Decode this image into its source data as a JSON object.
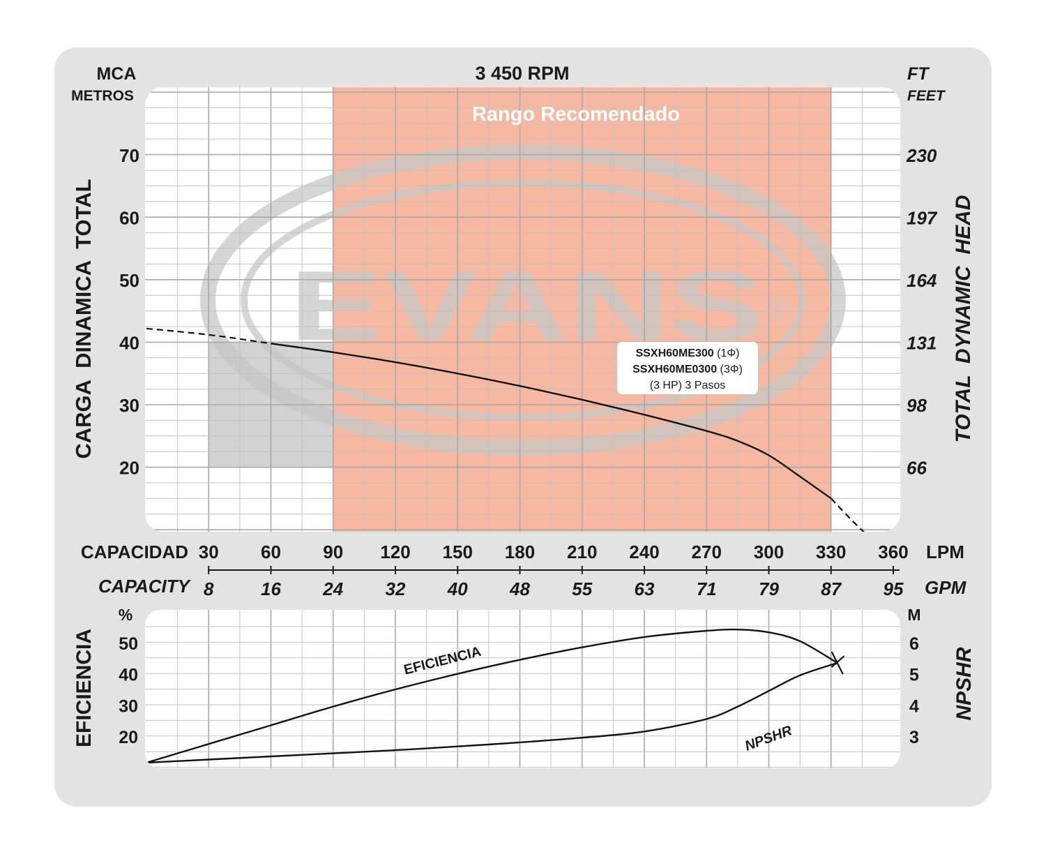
{
  "colors": {
    "frame": "#e3e3e3",
    "panel": "#ffffff",
    "grid": "#c2c2c2",
    "recommended_fill": "#f6b8a1",
    "gray_zone_fill": "#d2d2d2",
    "curve": "#111111",
    "watermark": "#c7c7c7",
    "text": "#1a1a1a"
  },
  "header": {
    "left_unit_main": "MCA",
    "left_unit_sub": "METROS",
    "speed": "3 450 RPM",
    "right_unit_main": "FT",
    "right_unit_sub": "FEET"
  },
  "watermark": {
    "brand": "EVANS",
    "mark": "®"
  },
  "recommended_range": {
    "label": "Rango Recomendado",
    "lpm_from": 90,
    "lpm_to": 330
  },
  "gray_zone": {
    "lpm_from": 30,
    "lpm_to": 90,
    "head_from": 20,
    "head_to": 40
  },
  "axes": {
    "left_title": "CARGA  DINAMICA  TOTAL",
    "right_title": "TOTAL  DYNAMIC  HEAD",
    "head_ticks_m": [
      "70",
      "60",
      "50",
      "40",
      "30",
      "20"
    ],
    "head_ticks_ft": [
      "230",
      "197",
      "164",
      "131",
      "98",
      "66"
    ],
    "capacity_label": "CAPACIDAD",
    "capacity_label_en": "CAPACITY",
    "lpm_unit": "LPM",
    "gpm_unit": "GPM",
    "lpm_ticks": [
      "30",
      "60",
      "90",
      "120",
      "150",
      "180",
      "210",
      "240",
      "270",
      "300",
      "330",
      "360"
    ],
    "gpm_ticks": [
      "8",
      "16",
      "24",
      "32",
      "40",
      "48",
      "55",
      "63",
      "71",
      "79",
      "87",
      "95"
    ],
    "eff_title": "EFICIENCIA",
    "eff_unit": "%",
    "eff_ticks": [
      "50",
      "40",
      "30",
      "20"
    ],
    "npsh_title": "NPSHR",
    "npsh_unit": "M",
    "npsh_ticks": [
      "6",
      "5",
      "4",
      "3"
    ]
  },
  "model_box": {
    "line1_model": "SSXH60ME300",
    "line1_phase": " (1Φ)",
    "line2_model": "SSXH60ME0300",
    "line2_phase": " (3Φ)",
    "line3": "(3 HP) 3 Pasos"
  },
  "curve_labels": {
    "efficiency": "EFICIENCIA",
    "npshr": "NPSHR"
  },
  "chart_data": [
    {
      "type": "line",
      "title": "3 450 RPM",
      "xlabel": "CAPACIDAD (LPM)",
      "ylabel": "CARGA DINAMICA TOTAL (MCA)",
      "xlim": [
        0,
        360
      ],
      "ylim": [
        10,
        80
      ],
      "grid": true,
      "series": [
        {
          "name": "SSXH60ME300 (1Φ) / SSXH60ME0300 (3Φ)",
          "dashed_x": [
            0,
            30,
            60,
            90
          ],
          "dashed_y": [
            42.2,
            41.2,
            39.8,
            38.4
          ],
          "solid_x": [
            60,
            90,
            120,
            150,
            180,
            210,
            240,
            270,
            285,
            300,
            315,
            330
          ],
          "solid_y": [
            39.8,
            38.4,
            36.8,
            35.0,
            33.0,
            30.8,
            28.4,
            25.8,
            24.2,
            21.9,
            18.5,
            15.0
          ],
          "tail_x": [
            330,
            340,
            350
          ],
          "tail_y": [
            15.0,
            11.5,
            8.3
          ]
        }
      ]
    },
    {
      "type": "line",
      "xlabel": "CAPACIDAD (LPM)",
      "ylabel": "EFICIENCIA (%)",
      "xlim": [
        0,
        360
      ],
      "ylim": [
        10,
        60
      ],
      "grid": true,
      "series": [
        {
          "name": "EFICIENCIA",
          "x": [
            0,
            30,
            60,
            90,
            120,
            150,
            180,
            210,
            240,
            270,
            285,
            300,
            315,
            333
          ],
          "y": [
            11.5,
            17.5,
            23.5,
            29.5,
            35.0,
            40.0,
            44.5,
            48.5,
            51.8,
            53.8,
            54.2,
            53.3,
            50.5,
            43.5
          ]
        },
        {
          "name": "NPSHR",
          "axis": "right",
          "ylim_right": [
            2,
            7
          ],
          "x": [
            0,
            30,
            60,
            90,
            120,
            150,
            180,
            210,
            240,
            270,
            285,
            300,
            315,
            333
          ],
          "y_m": [
            2.15,
            2.25,
            2.35,
            2.45,
            2.55,
            2.67,
            2.8,
            2.95,
            3.15,
            3.55,
            3.95,
            4.45,
            4.95,
            5.35
          ]
        }
      ]
    }
  ]
}
